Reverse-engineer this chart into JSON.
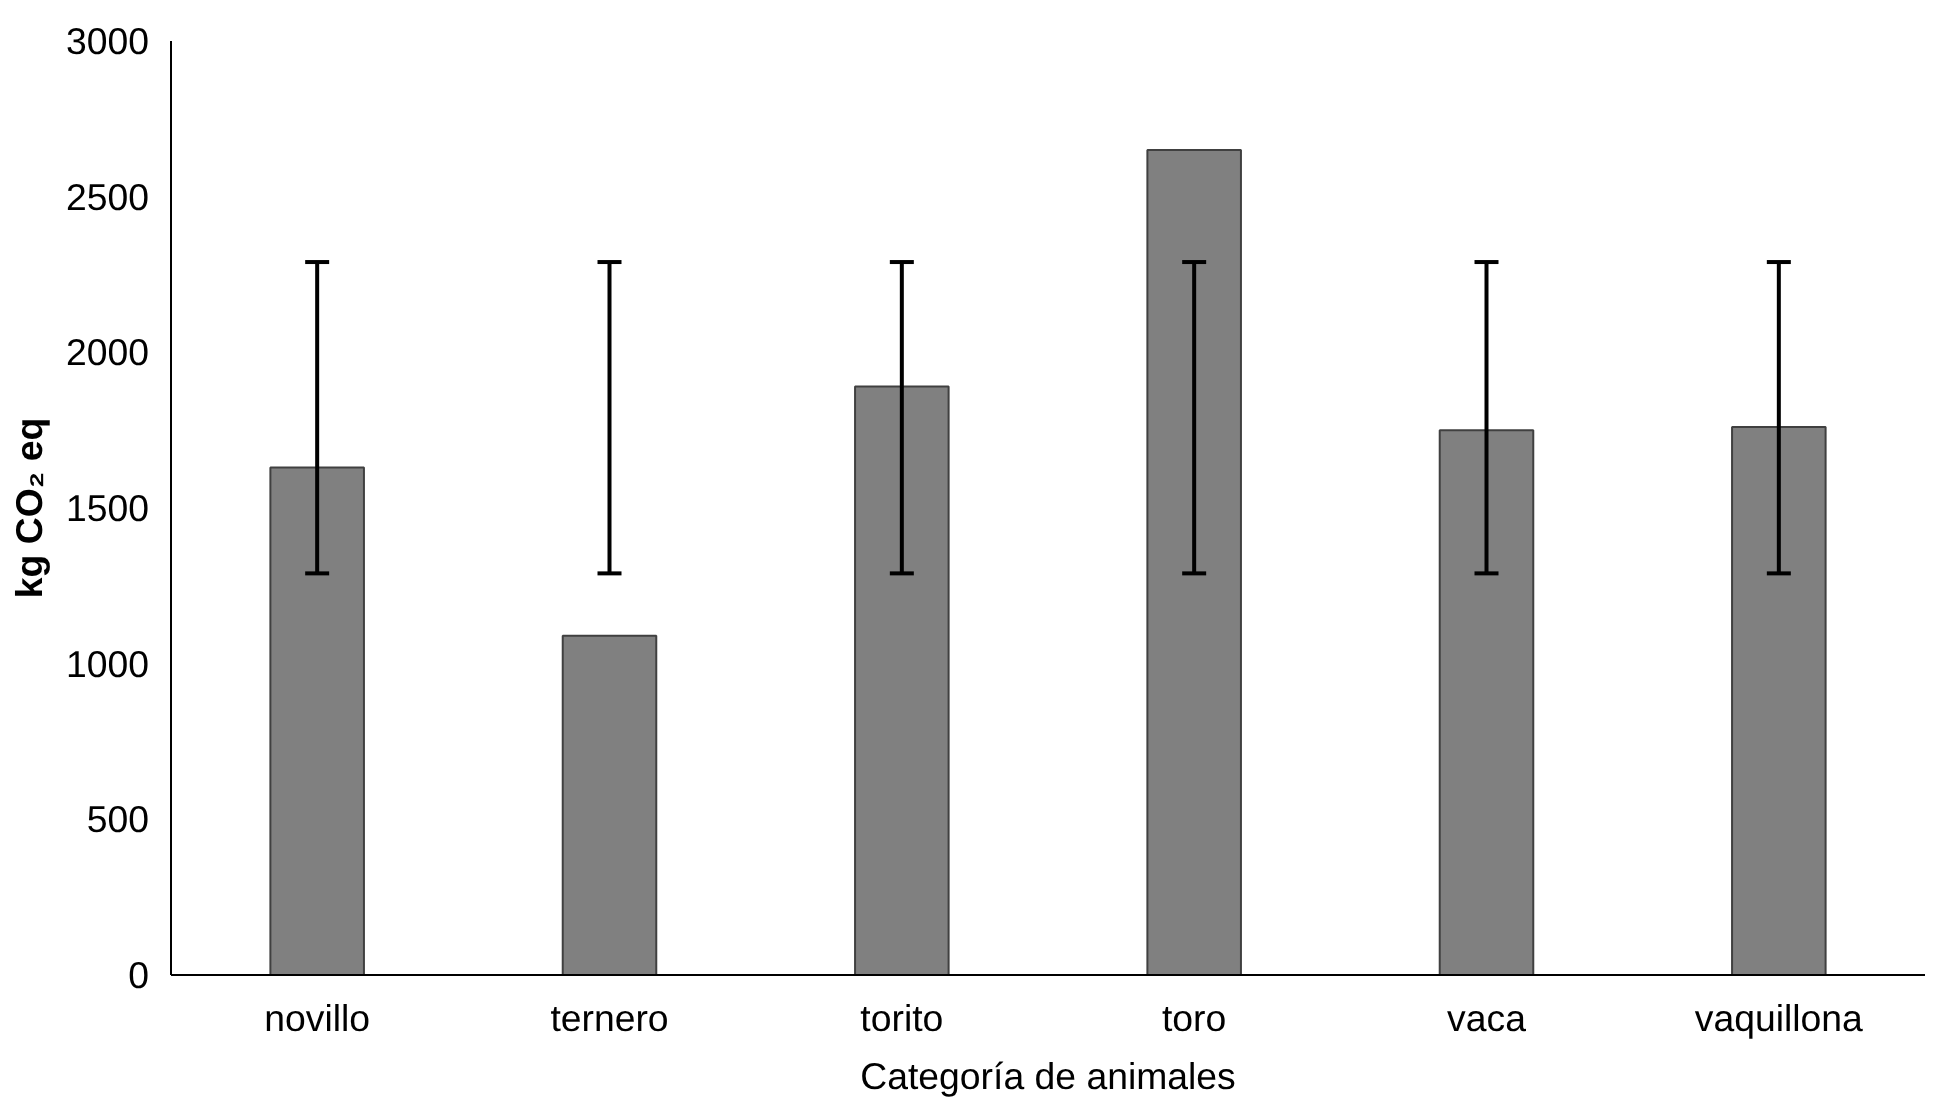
{
  "chart_data": {
    "type": "bar",
    "xlabel": "Categoría de animales",
    "ylabel": "kg CO₂ eq",
    "categories": [
      "novillo",
      "ternero",
      "torito",
      "toro",
      "vaca",
      "vaquillona"
    ],
    "values": [
      1630,
      1090,
      1890,
      2650,
      1750,
      1760
    ],
    "errors": [
      [
        1290,
        2290
      ],
      [
        1290,
        2290
      ],
      [
        1290,
        2290
      ],
      [
        1290,
        2290
      ],
      [
        1290,
        2290
      ],
      [
        1290,
        2290
      ]
    ],
    "color": "#808080",
    "ylim": [
      0,
      3000
    ],
    "yticks": [
      0,
      500,
      1000,
      1500,
      2000,
      2500,
      3000
    ],
    "grid": false
  }
}
